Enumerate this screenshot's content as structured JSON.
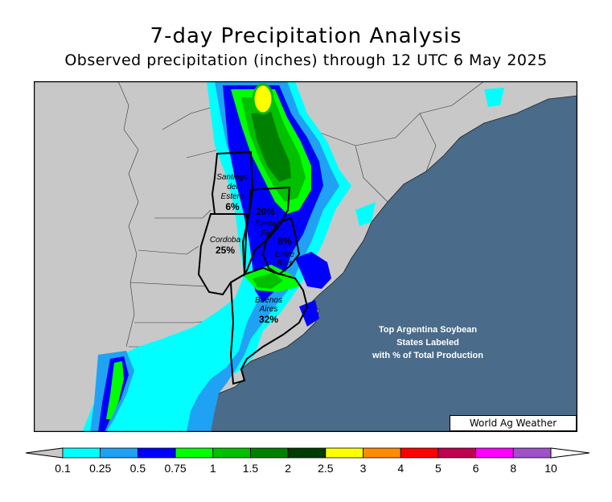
{
  "title": "7-day Precipitation Analysis",
  "subtitle": "Observed precipitation (inches) through 12 UTC 6 May 2025",
  "credit": "World Ag Weather",
  "note": {
    "line1": "Top Argentina Soybean",
    "line2": "States Labeled",
    "line3": "with % of Total Production"
  },
  "states": [
    {
      "name_line1": "Santiago",
      "name_line2": "del",
      "name_line3": "Estero",
      "pct": "6%"
    },
    {
      "name_line1": "Santa",
      "name_line2": "Fe",
      "pct": "20%"
    },
    {
      "name_line1": "Cordoba",
      "pct": "25%"
    },
    {
      "name_line1": "Entre",
      "name_line2": "Rios",
      "pct": "8%"
    },
    {
      "name_line1": "Buenos",
      "name_line2": "Aires",
      "pct": "32%"
    }
  ],
  "legend": {
    "labels": [
      "0.1",
      "0.25",
      "0.5",
      "0.75",
      "1",
      "1.5",
      "2",
      "2.5",
      "3",
      "4",
      "5",
      "6",
      "8",
      "10"
    ],
    "colors": [
      "#00ffff",
      "#1fa2f4",
      "#0000ff",
      "#00ff00",
      "#00c000",
      "#008000",
      "#003c00",
      "#ffff00",
      "#ff8c00",
      "#ff0000",
      "#c00050",
      "#ff00ff",
      "#a050c8"
    ]
  },
  "colors": {
    "ocean": "#4a6b8a",
    "land": "#c8c8c8"
  }
}
